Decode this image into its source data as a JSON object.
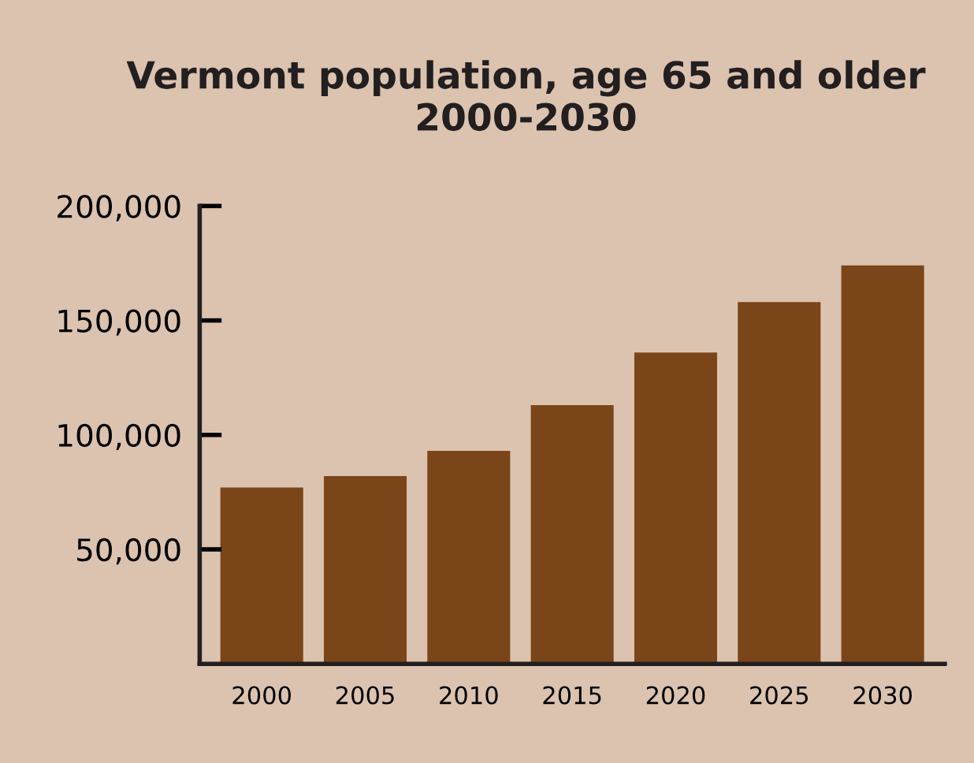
{
  "chart_data": {
    "type": "bar",
    "title": "Vermont population, age 65 and older\n2000-2030",
    "categories": [
      "2000",
      "2005",
      "2010",
      "2015",
      "2020",
      "2025",
      "2030"
    ],
    "values": [
      77000,
      82000,
      93000,
      113000,
      136000,
      158000,
      174000
    ],
    "color": "#7a4518",
    "ylim": [
      0,
      200000
    ],
    "yticks": [
      {
        "value": 50000,
        "label": "50,000"
      },
      {
        "value": 100000,
        "label": "100,000"
      },
      {
        "value": 150000,
        "label": "150,000"
      },
      {
        "value": 200000,
        "label": "200,000"
      }
    ],
    "grid": false
  }
}
